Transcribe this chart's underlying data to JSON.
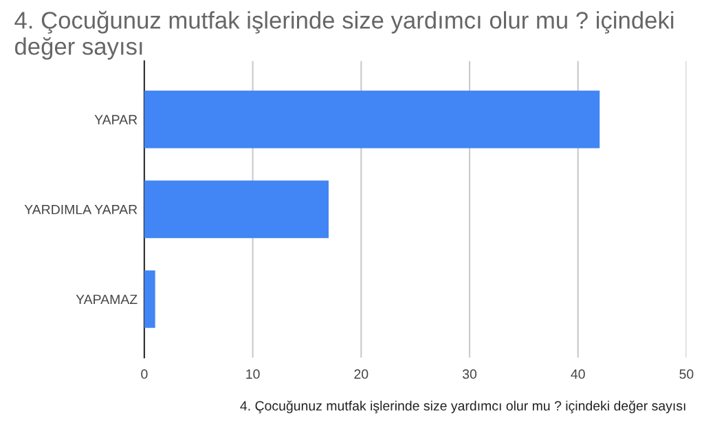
{
  "chart_data": {
    "type": "bar",
    "orientation": "horizontal",
    "title": "4. Çocuğunuz mutfak işlerinde size yardımcı olur mu ? içindeki değer sayısı",
    "xlabel": "4. Çocuğunuz mutfak işlerinde size yardımcı olur mu ? içindeki değer sayısı",
    "categories": [
      "YAPAR",
      "YARDIMLA YAPAR",
      "YAPAMAZ"
    ],
    "values": [
      42,
      17,
      1
    ],
    "color": "#4285f4",
    "xlim": [
      0,
      50
    ],
    "xticks": [
      0,
      10,
      20,
      30,
      40,
      50
    ],
    "grid": "x",
    "legend": false
  }
}
